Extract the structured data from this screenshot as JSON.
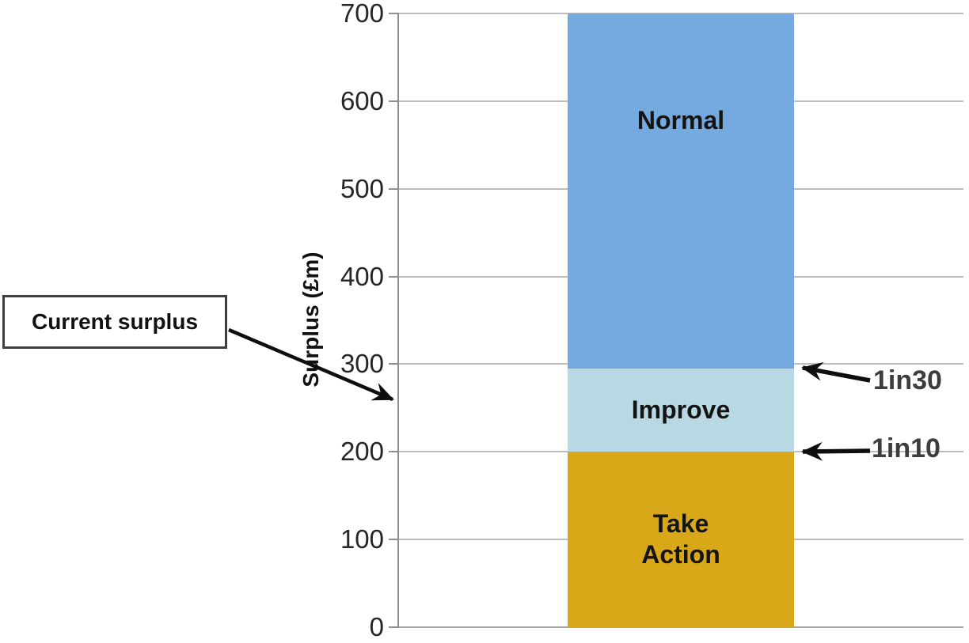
{
  "chart_data": {
    "type": "bar",
    "subtype": "single-stacked-column-zones",
    "ylabel": "Surplus (£m)",
    "ylim": [
      0,
      700
    ],
    "y_ticks": [
      0,
      100,
      200,
      300,
      400,
      500,
      600,
      700
    ],
    "grid": true,
    "grid_color": "#bdbdbd",
    "legend_position": "none",
    "bar": {
      "zones": [
        {
          "label": "Take Action",
          "from": 0,
          "to": 200,
          "color": "#d9a818"
        },
        {
          "label": "Improve",
          "from": 200,
          "to": 295,
          "color": "#b8d8e4"
        },
        {
          "label": "Normal",
          "from": 295,
          "to": 700,
          "color": "#74aadf"
        }
      ]
    },
    "annotations": [
      {
        "label": "Current surplus",
        "style": "boxed-callout-with-arrow",
        "points_to_value": 255
      },
      {
        "label": "1in30",
        "style": "arrow-left",
        "points_to_value": 295
      },
      {
        "label": "1in10",
        "style": "arrow-left",
        "points_to_value": 200
      }
    ]
  }
}
